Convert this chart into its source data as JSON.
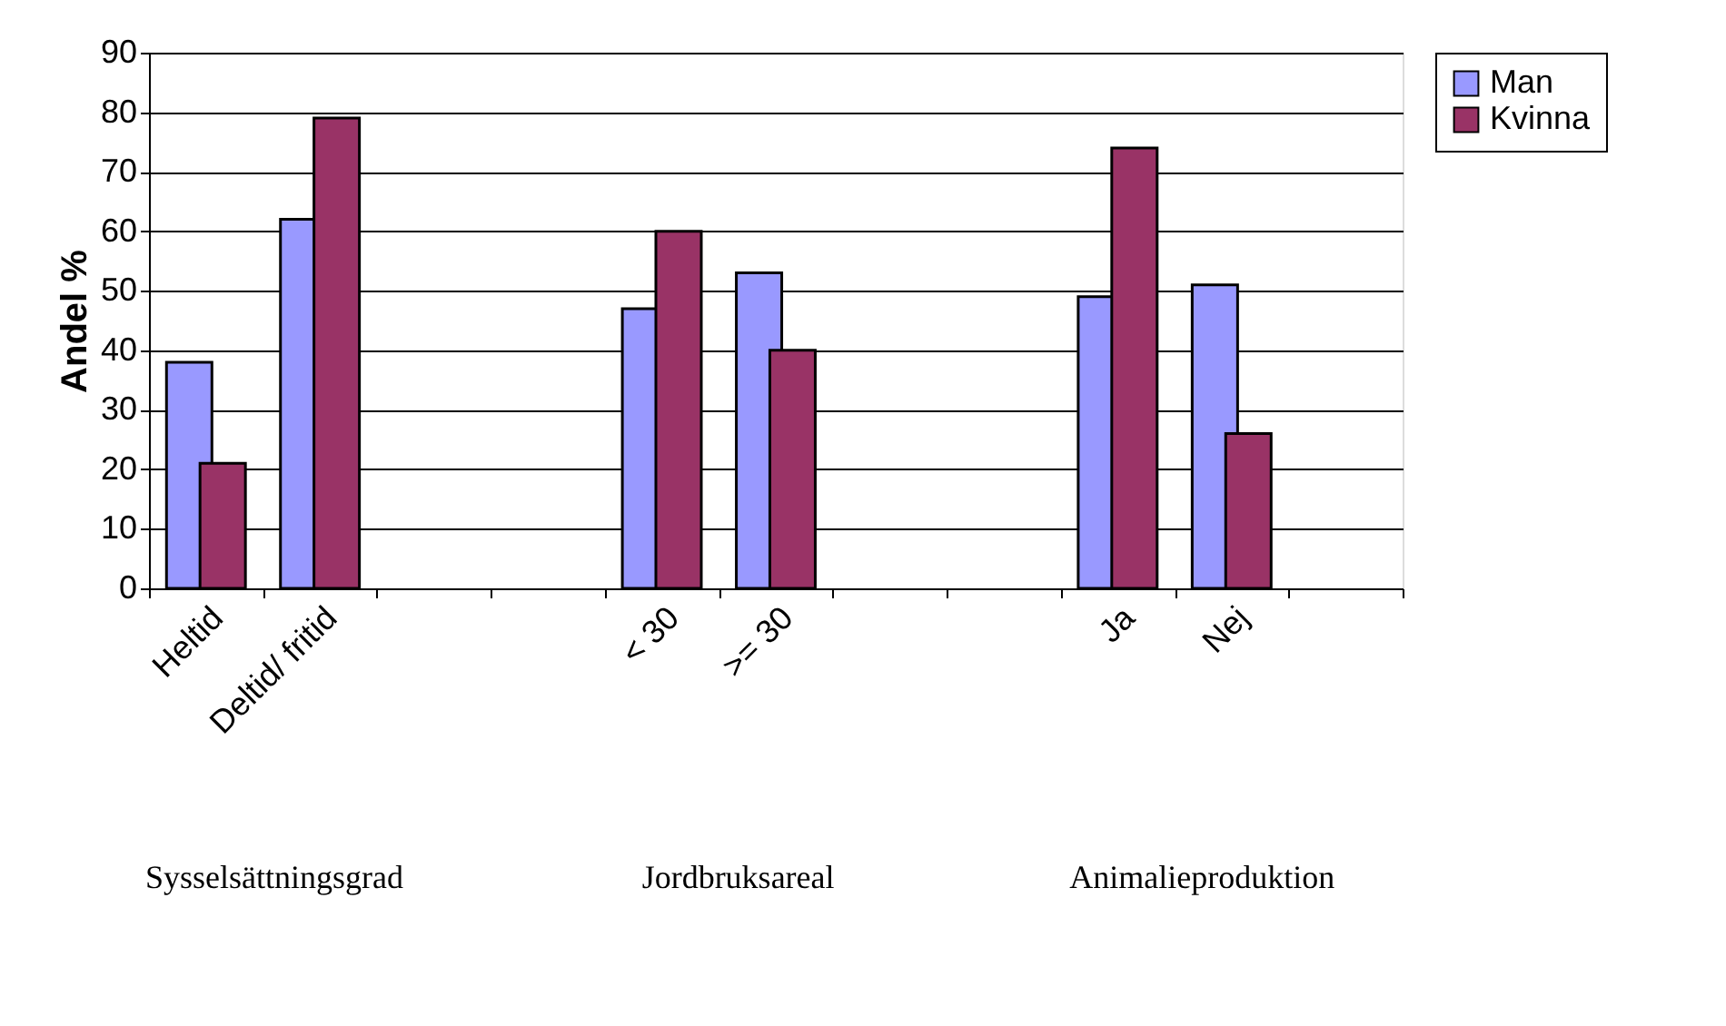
{
  "chart_data": {
    "type": "bar",
    "ylabel": "Andel %",
    "categories": [
      "Heltid",
      "Deltid/ fritid",
      null,
      null,
      "< 30",
      ">= 30",
      null,
      null,
      "Ja",
      "Nej",
      null
    ],
    "series": [
      {
        "name": "Man",
        "color": "#9999ff",
        "values": [
          38,
          62,
          null,
          null,
          47,
          53,
          null,
          null,
          49,
          51,
          null
        ]
      },
      {
        "name": "Kvinna",
        "color": "#993366",
        "values": [
          21,
          79,
          null,
          null,
          60,
          40,
          null,
          null,
          74,
          26,
          null
        ]
      }
    ],
    "ylim": [
      0,
      90
    ],
    "yticks": [
      0,
      10,
      20,
      30,
      40,
      50,
      60,
      70,
      80,
      90
    ],
    "grid": "y",
    "legend": "right",
    "annotations": [
      "Sysselsättningsgrad",
      "Jordbruksareal",
      "Animalieproduktion"
    ]
  }
}
